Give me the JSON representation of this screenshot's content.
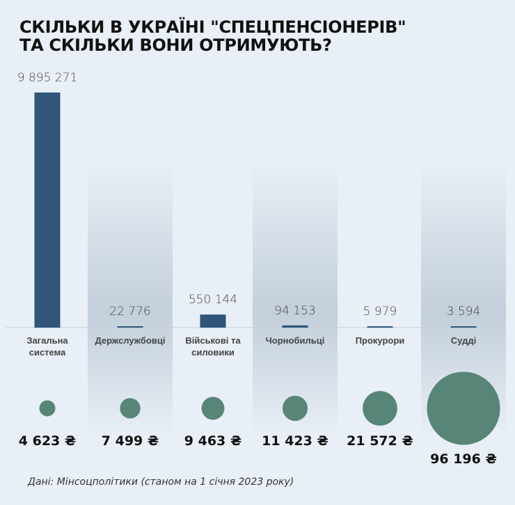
{
  "title": {
    "line1": "СКІЛЬКИ В УКРАЇНІ \"СПЕЦПЕНСІОНЕРІВ\"",
    "line2": "ТА СКІЛЬКИ ВОНИ ОТРИМУЮТЬ?"
  },
  "source": "Дані: Мінсоцполітики (станом на 1 січня 2023 року)",
  "colors": {
    "background": "#e9eff6",
    "bar": "#2f5679",
    "circle": "#578578",
    "shade": "#c3cfdb"
  },
  "chart_data": {
    "type": "bar",
    "title": "СКІЛЬКИ В УКРАЇНІ \"СПЕЦПЕНСІОНЕРІВ\" ТА СКІЛЬКИ ВОНИ ОТРИМУЮТЬ?",
    "categories": [
      [
        "Загальна",
        "система"
      ],
      [
        "Держслужбовці"
      ],
      [
        "Військові та",
        "силовики"
      ],
      [
        "Чорнобильці"
      ],
      [
        "Прокурори"
      ],
      [
        "Судді"
      ]
    ],
    "series": [
      {
        "kind": "bar",
        "values": [
          9895271,
          22776,
          550144,
          94153,
          5979,
          3594
        ],
        "labels": [
          "9 895 271",
          "22 776",
          "550 144",
          "94 153",
          "5 979",
          "3 594"
        ]
      },
      {
        "kind": "bubble",
        "values": [
          4623,
          7499,
          9463,
          11423,
          21572,
          96196
        ],
        "labels": [
          "4 623 ₴",
          "7 499 ₴",
          "9 463 ₴",
          "11 423 ₴",
          "21 572 ₴",
          "96 196 ₴"
        ]
      }
    ],
    "grid": false,
    "legend": "none"
  }
}
